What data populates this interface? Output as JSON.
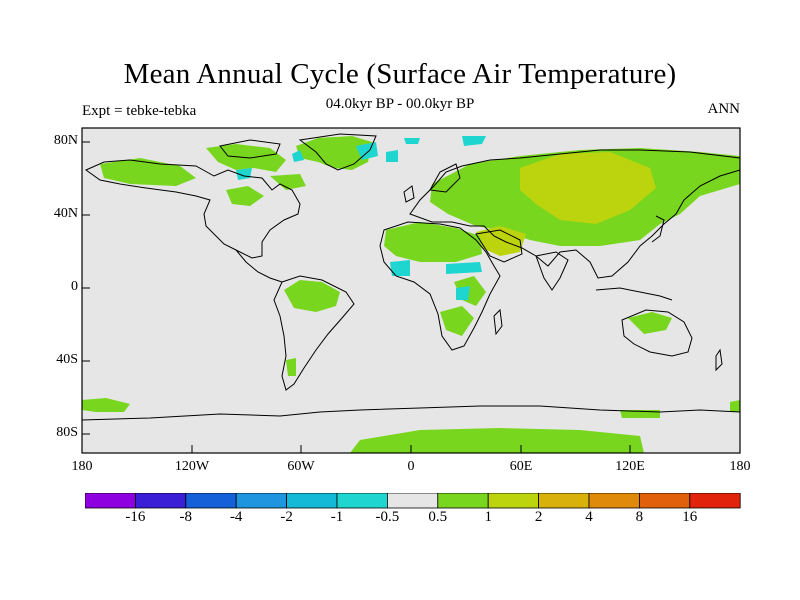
{
  "title": "Mean Annual Cycle (Surface Air Temperature)",
  "subtitle": "04.0kyr BP - 00.0kyr BP",
  "left_label": "Expt = tebke-tebka",
  "right_label": "ANN",
  "lat_labels": [
    "80N",
    "40N",
    "0",
    "40S",
    "80S"
  ],
  "lon_labels": [
    "180",
    "120W",
    "60W",
    "0",
    "60E",
    "120E",
    "180"
  ],
  "colorbar": {
    "labels": [
      "-16",
      "-8",
      "-4",
      "-2",
      "-1",
      "-0.5",
      "0.5",
      "1",
      "2",
      "4",
      "8",
      "16"
    ],
    "colors": [
      "#8f00e0",
      "#3a1fd6",
      "#1460d8",
      "#1e95de",
      "#14b9d7",
      "#1ed6cf",
      "#e6e6e6",
      "#78d61e",
      "#bcd40e",
      "#d8b20a",
      "#e08a0c",
      "#e0600c",
      "#e2230c"
    ]
  },
  "colors": {
    "background": "#e6e6e6",
    "land_outline": "#000000",
    "warm_1": "#78d61e",
    "warm_2": "#bcd40e",
    "cool_1": "#1ed6cf"
  }
}
